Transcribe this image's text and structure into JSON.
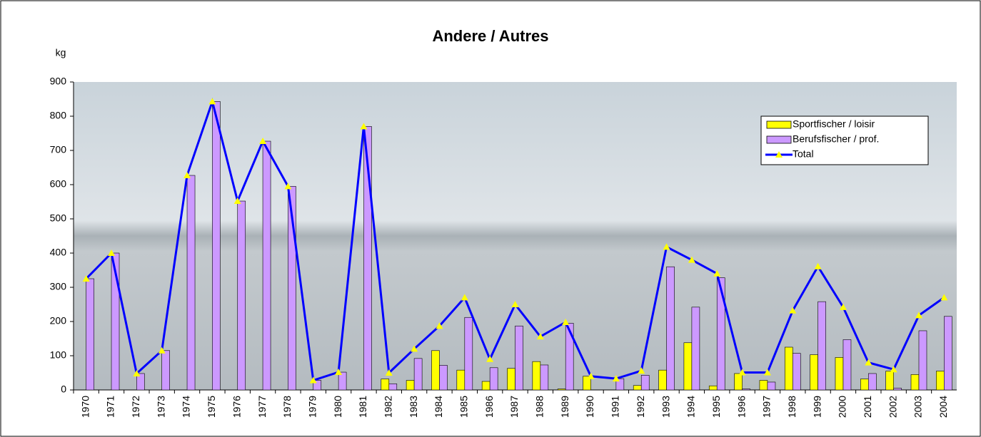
{
  "chart_data": {
    "type": "bar_line",
    "title": "Andere / Autres",
    "y_label": "kg",
    "categories": [
      "1970",
      "1971",
      "1972",
      "1973",
      "1974",
      "1975",
      "1976",
      "1977",
      "1978",
      "1979",
      "1980",
      "1981",
      "1982",
      "1983",
      "1984",
      "1985",
      "1986",
      "1987",
      "1988",
      "1989",
      "1990",
      "1991",
      "1992",
      "1993",
      "1994",
      "1995",
      "1996",
      "1997",
      "1998",
      "1999",
      "2000",
      "2001",
      "2002",
      "2003",
      "2004"
    ],
    "series": [
      {
        "name": "Sportfischer / loisir",
        "kind": "bar",
        "color": "#ffff00",
        "values": [
          0,
          0,
          0,
          0,
          0,
          0,
          0,
          0,
          0,
          0,
          0,
          0,
          32,
          28,
          115,
          58,
          25,
          63,
          83,
          3,
          40,
          0,
          13,
          58,
          138,
          12,
          48,
          28,
          125,
          103,
          95,
          32,
          55,
          45,
          55
        ]
      },
      {
        "name": "Berufsfischer / prof.",
        "kind": "bar",
        "color": "#cc99ff",
        "values": [
          325,
          400,
          48,
          115,
          627,
          843,
          552,
          727,
          595,
          28,
          52,
          770,
          18,
          92,
          72,
          212,
          65,
          187,
          73,
          195,
          0,
          33,
          43,
          360,
          242,
          328,
          3,
          23,
          107,
          258,
          147,
          48,
          5,
          173,
          215
        ]
      },
      {
        "name": "Total",
        "kind": "line",
        "color": "#0000ff",
        "marker_color": "#ffff00",
        "values": [
          325,
          400,
          48,
          115,
          627,
          843,
          552,
          727,
          595,
          28,
          52,
          770,
          50,
          120,
          187,
          270,
          90,
          250,
          156,
          198,
          40,
          33,
          56,
          418,
          380,
          340,
          51,
          51,
          232,
          361,
          242,
          80,
          60,
          218,
          270
        ]
      }
    ],
    "ylim": [
      0,
      900
    ],
    "yticks": [
      0,
      100,
      200,
      300,
      400,
      500,
      600,
      700,
      800,
      900
    ],
    "legend": "upper right"
  }
}
